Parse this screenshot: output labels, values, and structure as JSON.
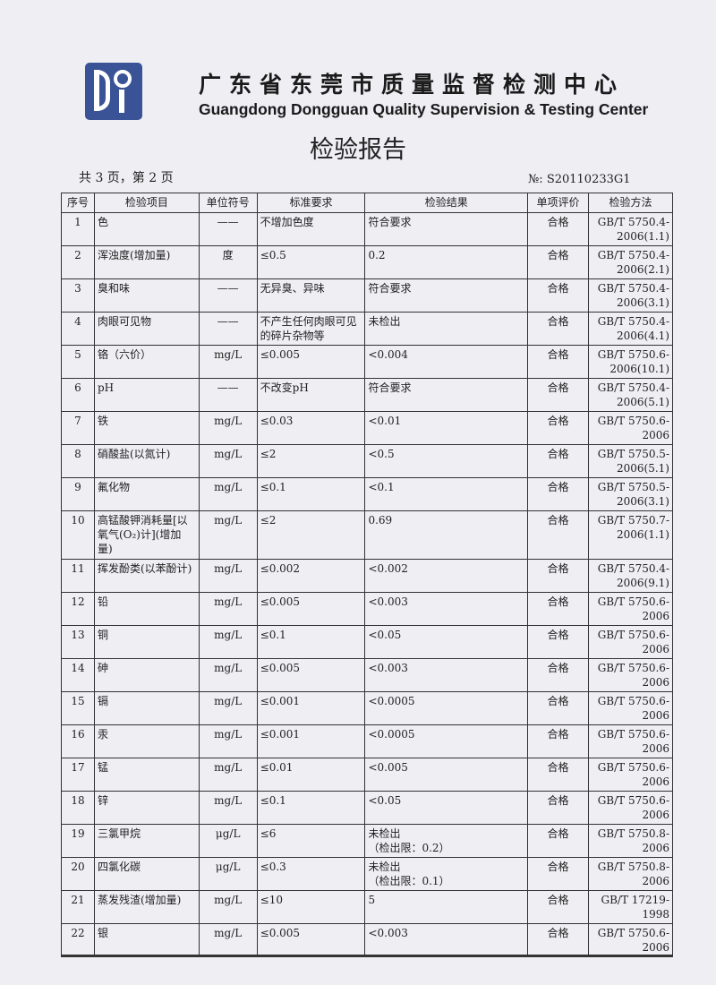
{
  "header": {
    "logo_text": "DQT",
    "org_name_cn": "广东省东莞市质量监督检测中心",
    "org_name_en": "Guangdong Dongguan Quality Supervision & Testing Center",
    "title": "检验报告",
    "pages": "共 3 页，第 2 页",
    "report_no": "№: S20110233G1"
  },
  "table": {
    "columns": [
      "序号",
      "检验项目",
      "单位符号",
      "标准要求",
      "检验结果",
      "单项评价",
      "检验方法"
    ],
    "rows": [
      {
        "no": "1",
        "item": "色",
        "unit": "——",
        "std": "不增加色度",
        "result": "符合要求",
        "eval": "合格",
        "method": "GB/T 5750.4-2006(1.1)"
      },
      {
        "no": "2",
        "item": "浑浊度(增加量)",
        "unit": "度",
        "std": "≤0.5",
        "result": "0.2",
        "eval": "合格",
        "method": "GB/T 5750.4-2006(2.1)"
      },
      {
        "no": "3",
        "item": "臭和味",
        "unit": "——",
        "std": "无异臭、异味",
        "result": "符合要求",
        "eval": "合格",
        "method": "GB/T 5750.4-2006(3.1)"
      },
      {
        "no": "4",
        "item": "肉眼可见物",
        "unit": "——",
        "std": "不产生任何肉眼可见的碎片杂物等",
        "result": "未检出",
        "eval": "合格",
        "method": "GB/T 5750.4-2006(4.1)"
      },
      {
        "no": "5",
        "item": "铬（六价）",
        "unit": "mg/L",
        "std": "≤0.005",
        "result": "<0.004",
        "eval": "合格",
        "method": "GB/T 5750.6-2006(10.1)"
      },
      {
        "no": "6",
        "item": "pH",
        "unit": "——",
        "std": "不改变pH",
        "result": "符合要求",
        "eval": "合格",
        "method": "GB/T 5750.4-2006(5.1)"
      },
      {
        "no": "7",
        "item": "铁",
        "unit": "mg/L",
        "std": "≤0.03",
        "result": "<0.01",
        "eval": "合格",
        "method": "GB/T 5750.6-2006"
      },
      {
        "no": "8",
        "item": "硝酸盐(以氮计)",
        "unit": "mg/L",
        "std": "≤2",
        "result": "<0.5",
        "eval": "合格",
        "method": "GB/T 5750.5-2006(5.1)"
      },
      {
        "no": "9",
        "item": "氟化物",
        "unit": "mg/L",
        "std": "≤0.1",
        "result": "<0.1",
        "eval": "合格",
        "method": "GB/T 5750.5-2006(3.1)"
      },
      {
        "no": "10",
        "item": "高锰酸钾消耗量[以氧气(O₂)计](增加量)",
        "unit": "mg/L",
        "std": "≤2",
        "result": "0.69",
        "eval": "合格",
        "method": "GB/T 5750.7-2006(1.1)"
      },
      {
        "no": "11",
        "item": "挥发酚类(以苯酚计)",
        "unit": "mg/L",
        "std": "≤0.002",
        "result": "<0.002",
        "eval": "合格",
        "method": "GB/T 5750.4-2006(9.1)"
      },
      {
        "no": "12",
        "item": "铅",
        "unit": "mg/L",
        "std": "≤0.005",
        "result": "<0.003",
        "eval": "合格",
        "method": "GB/T 5750.6-2006"
      },
      {
        "no": "13",
        "item": "铜",
        "unit": "mg/L",
        "std": "≤0.1",
        "result": "<0.05",
        "eval": "合格",
        "method": "GB/T 5750.6-2006"
      },
      {
        "no": "14",
        "item": "砷",
        "unit": "mg/L",
        "std": "≤0.005",
        "result": "<0.003",
        "eval": "合格",
        "method": "GB/T 5750.6-2006"
      },
      {
        "no": "15",
        "item": "镉",
        "unit": "mg/L",
        "std": "≤0.001",
        "result": "<0.0005",
        "eval": "合格",
        "method": "GB/T 5750.6-2006"
      },
      {
        "no": "16",
        "item": "汞",
        "unit": "mg/L",
        "std": "≤0.001",
        "result": "<0.0005",
        "eval": "合格",
        "method": "GB/T 5750.6-2006"
      },
      {
        "no": "17",
        "item": "锰",
        "unit": "mg/L",
        "std": "≤0.01",
        "result": "<0.005",
        "eval": "合格",
        "method": "GB/T 5750.6-2006"
      },
      {
        "no": "18",
        "item": "锌",
        "unit": "mg/L",
        "std": "≤0.1",
        "result": "<0.05",
        "eval": "合格",
        "method": "GB/T 5750.6-2006"
      },
      {
        "no": "19",
        "item": "三氯甲烷",
        "unit": "μg/L",
        "std": "≤6",
        "result": "未检出\n（检出限：0.2）",
        "eval": "合格",
        "method": "GB/T 5750.8-2006"
      },
      {
        "no": "20",
        "item": "四氯化碳",
        "unit": "μg/L",
        "std": "≤0.3",
        "result": "未检出\n（检出限：0.1）",
        "eval": "合格",
        "method": "GB/T 5750.8-2006"
      },
      {
        "no": "21",
        "item": "蒸发残渣(增加量)",
        "unit": "mg/L",
        "std": "≤10",
        "result": "5",
        "eval": "合格",
        "method": "GB/T 17219-1998"
      },
      {
        "no": "22",
        "item": "银",
        "unit": "mg/L",
        "std": "≤0.005",
        "result": "<0.003",
        "eval": "合格",
        "method": "GB/T 5750.6-2006"
      }
    ]
  }
}
